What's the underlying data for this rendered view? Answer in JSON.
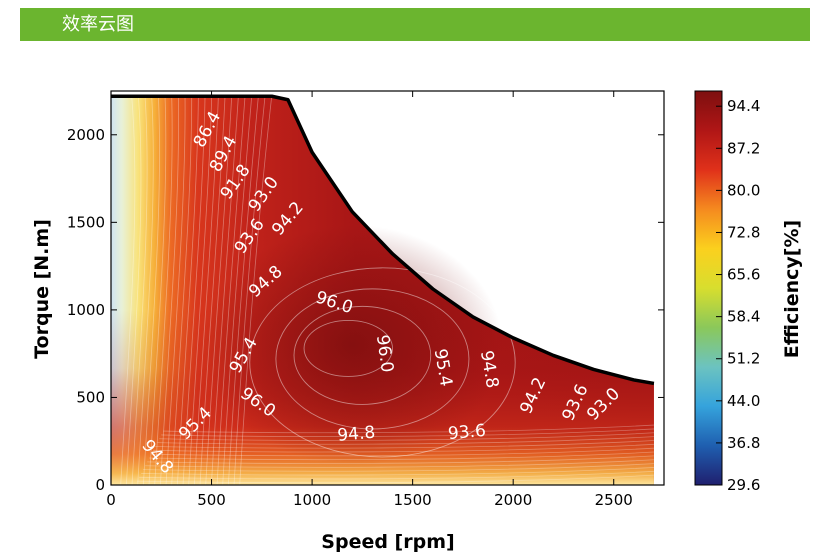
{
  "header": {
    "title": "效率云图"
  },
  "colors": {
    "header_bg": "#6bb52f",
    "colormap": [
      "#1f1f6e",
      "#1f5fb0",
      "#35a3dc",
      "#6cc3c0",
      "#8bc85a",
      "#d8de2e",
      "#fbd01e",
      "#f58a1f",
      "#e0311a",
      "#b01616",
      "#7d0f0f"
    ]
  },
  "chart_data": {
    "type": "heatmap",
    "subtype": "efficiency contour map",
    "xlabel": "Speed [rpm]",
    "ylabel": "Torque [N.m]",
    "colorbar_label": "Efficiency[%]",
    "xlim": [
      0,
      2750
    ],
    "ylim": [
      0,
      2250
    ],
    "xticks": [
      "0",
      "500",
      "1000",
      "1500",
      "2000",
      "2500"
    ],
    "xtick_values": [
      0,
      500,
      1000,
      1500,
      2000,
      2500
    ],
    "yticks": [
      "0",
      "500",
      "1000",
      "1500",
      "2000"
    ],
    "ytick_values": [
      0,
      500,
      1000,
      1500,
      2000
    ],
    "colorbar_ticks": [
      "94.4",
      "87.2",
      "80.0",
      "72.8",
      "65.6",
      "58.4",
      "51.2",
      "44.0",
      "36.8",
      "29.6"
    ],
    "colorbar_range": [
      29.6,
      97.0
    ],
    "max_torque_curve": {
      "speed": [
        0,
        800,
        880,
        1000,
        1200,
        1400,
        1600,
        1800,
        2000,
        2200,
        2400,
        2600,
        2700
      ],
      "torque": [
        2220,
        2220,
        2200,
        1900,
        1560,
        1320,
        1120,
        960,
        840,
        740,
        660,
        600,
        580
      ]
    },
    "contour_labels": [
      {
        "value": "86.4",
        "speed": 480,
        "torque": 2030,
        "angle": -62
      },
      {
        "value": "89.4",
        "speed": 560,
        "torque": 1890,
        "angle": -62
      },
      {
        "value": "91.8",
        "speed": 620,
        "torque": 1730,
        "angle": -55
      },
      {
        "value": "93.0",
        "speed": 760,
        "torque": 1660,
        "angle": -55
      },
      {
        "value": "93.6",
        "speed": 690,
        "torque": 1420,
        "angle": -55
      },
      {
        "value": "94.2",
        "speed": 880,
        "torque": 1520,
        "angle": -50
      },
      {
        "value": "94.8",
        "speed": 770,
        "torque": 1160,
        "angle": -42
      },
      {
        "value": "96.0",
        "speed": 1110,
        "torque": 1040,
        "angle": 18
      },
      {
        "value": "96.0",
        "speed": 1360,
        "torque": 750,
        "angle": 82
      },
      {
        "value": "95.4",
        "speed": 660,
        "torque": 740,
        "angle": -60
      },
      {
        "value": "96.0",
        "speed": 730,
        "torque": 470,
        "angle": 35
      },
      {
        "value": "95.4",
        "speed": 420,
        "torque": 350,
        "angle": -45
      },
      {
        "value": "94.8",
        "speed": 230,
        "torque": 160,
        "angle": 50
      },
      {
        "value": "94.8",
        "speed": 1220,
        "torque": 290,
        "angle": -5
      },
      {
        "value": "93.6",
        "speed": 1770,
        "torque": 300,
        "angle": -5
      },
      {
        "value": "95.4",
        "speed": 1650,
        "torque": 670,
        "angle": 80
      },
      {
        "value": "94.8",
        "speed": 1880,
        "torque": 660,
        "angle": 80
      },
      {
        "value": "94.2",
        "speed": 2100,
        "torque": 510,
        "angle": -65
      },
      {
        "value": "93.6",
        "speed": 2310,
        "torque": 470,
        "angle": -65
      },
      {
        "value": "93.0",
        "speed": 2450,
        "torque": 460,
        "angle": -45
      }
    ],
    "grid": false
  }
}
